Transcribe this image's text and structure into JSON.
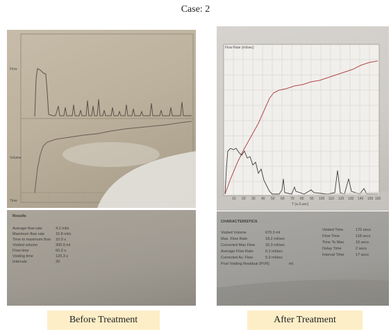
{
  "case_title": "Case: 2",
  "before": {
    "caption": "Before Treatment",
    "graph_labels": {
      "flow": "Flow",
      "volume": "Volume",
      "time": "Time"
    },
    "report_header": "Results",
    "report_rows": [
      {
        "label": "Average flow rate",
        "value": "4.2 ml/s"
      },
      {
        "label": "Maximum flow rate",
        "value": "15.8 ml/s"
      },
      {
        "label": "Time to maximum flow",
        "value": "10.0 s"
      },
      {
        "label": "Voided volume",
        "value": "300.0 ml"
      },
      {
        "label": "Flow time",
        "value": "60.3 s"
      },
      {
        "label": "Voiding time",
        "value": "120.3 s"
      },
      {
        "label": "Intervals",
        "value": "20"
      }
    ]
  },
  "after": {
    "caption": "After Treatment",
    "graph_legend": "Flow Rate (ml/sec)",
    "x_axis_label": "T (a.S.sec)",
    "x_ticks": [
      "10",
      "20",
      "30",
      "40",
      "50",
      "60",
      "70",
      "80",
      "90",
      "100",
      "110",
      "120",
      "130",
      "140",
      "150",
      "160"
    ],
    "report_header": "CHARACTERISTICS",
    "report_left": [
      {
        "label": "Voided Volume",
        "value": "670.0 ml",
        "highlight": true
      },
      {
        "label": "Max. Flow Rate",
        "value": "18.2 ml/sec",
        "highlight": false
      },
      {
        "label": "Corrected Max Flow",
        "value": "16.3 ml/sec",
        "highlight": true
      },
      {
        "label": "Average Flow Rate",
        "value": "6.2 ml/sec",
        "highlight": false
      },
      {
        "label": "Corrected Av. Flow",
        "value": "5.9 ml/sec",
        "highlight": true
      },
      {
        "label": "Post Voiding Residual (PVR)",
        "value": "ml",
        "highlight": false
      }
    ],
    "report_right": [
      {
        "label": "Voided Time",
        "value": "170 secs"
      },
      {
        "label": "Flow Time",
        "value": "118 secs"
      },
      {
        "label": "Time To Max",
        "value": "10 secs"
      },
      {
        "label": "Delay Time",
        "value": "2 secs"
      },
      {
        "label": "Interval Time",
        "value": "17 secs"
      }
    ]
  }
}
